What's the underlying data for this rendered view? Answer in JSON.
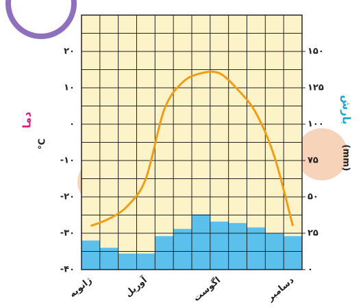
{
  "chart_data": {
    "type": "climograph",
    "categories": [
      "ژانویه",
      null,
      null,
      "آوریل",
      null,
      null,
      null,
      "اگوست",
      null,
      null,
      null,
      "دسامبر"
    ],
    "ylabel": "دما",
    "ylabel_unit": "°C",
    "y2label": "بارش",
    "y2label_unit": "(mm)",
    "series": [
      {
        "name": "بارش",
        "type": "bar",
        "axis": "y2",
        "color": "#5bc0eb",
        "values": [
          20,
          15,
          11,
          11,
          23,
          28,
          38,
          33,
          32,
          29,
          25,
          23
        ]
      },
      {
        "name": "دما",
        "type": "line",
        "color": "#f39c12",
        "values": [
          -28,
          -26,
          -22.5,
          -15,
          4,
          11.5,
          14,
          14,
          9.5,
          3,
          -9,
          -28
        ]
      }
    ],
    "ylim": [
      -40,
      30
    ],
    "yticks": [
      {
        "value": -40,
        "label": "-۴۰"
      },
      {
        "value": -30,
        "label": "-۳۰"
      },
      {
        "value": -20,
        "label": "-۲۰"
      },
      {
        "value": -10,
        "label": "-۱۰"
      },
      {
        "value": 0,
        "label": "۰"
      },
      {
        "value": 10,
        "label": "۱۰"
      },
      {
        "value": 20,
        "label": "۲۰"
      }
    ],
    "y2lim": [
      0,
      175
    ],
    "y2ticks": [
      {
        "value": 0,
        "label": "۰"
      },
      {
        "value": 25,
        "label": "۲۵"
      },
      {
        "value": 50,
        "label": "۵۰"
      },
      {
        "value": 75,
        "label": "۷۵"
      },
      {
        "value": 100,
        "label": "۱۰۰"
      },
      {
        "value": 125,
        "label": "۱۲۵"
      },
      {
        "value": 150,
        "label": "۱۵۰"
      }
    ],
    "grid": true
  }
}
